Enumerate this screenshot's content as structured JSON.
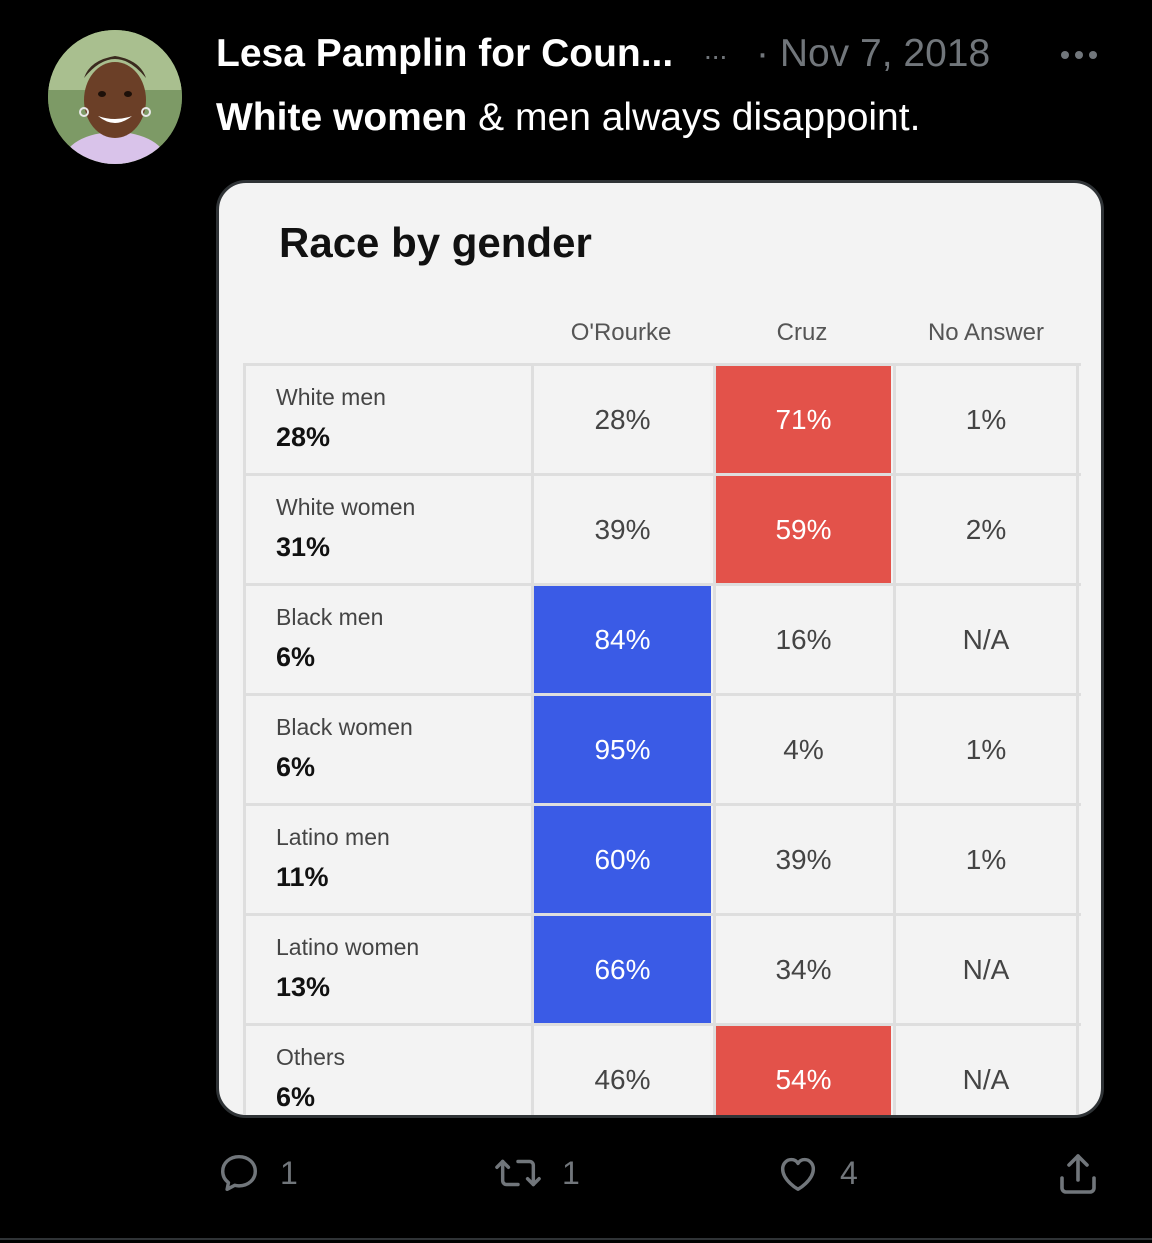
{
  "tweet": {
    "author_name": "Lesa Pamplin for Coun...",
    "inline_ellipsis": "...",
    "date": "· Nov 7, 2018",
    "text_bold": "White women",
    "text_rest": " & men always disappoint."
  },
  "media": {
    "title": "Race by gender",
    "columns": [
      "O'Rourke",
      "Cruz",
      "No Answer"
    ],
    "rows": [
      {
        "name": "White men",
        "share": "28%",
        "cells": [
          "28%",
          "71%",
          "1%"
        ],
        "highlight": "rep"
      },
      {
        "name": "White women",
        "share": "31%",
        "cells": [
          "39%",
          "59%",
          "2%"
        ],
        "highlight": "rep"
      },
      {
        "name": "Black men",
        "share": "6%",
        "cells": [
          "84%",
          "16%",
          "N/A"
        ],
        "highlight": "dem"
      },
      {
        "name": "Black women",
        "share": "6%",
        "cells": [
          "95%",
          "4%",
          "1%"
        ],
        "highlight": "dem"
      },
      {
        "name": "Latino men",
        "share": "11%",
        "cells": [
          "60%",
          "39%",
          "1%"
        ],
        "highlight": "dem"
      },
      {
        "name": "Latino women",
        "share": "13%",
        "cells": [
          "66%",
          "34%",
          "N/A"
        ],
        "highlight": "dem"
      },
      {
        "name": "Others",
        "share": "6%",
        "cells": [
          "46%",
          "54%",
          "N/A"
        ],
        "highlight": "rep"
      }
    ],
    "colors": {
      "cruz_red": "#e3524a",
      "orourke_blue": "#3a5be6"
    }
  },
  "actions": {
    "reply_count": "1",
    "retweet_count": "1",
    "like_count": "4"
  },
  "icons": [
    "avatar",
    "more-icon",
    "reply-icon",
    "retweet-icon",
    "like-icon",
    "share-icon"
  ]
}
